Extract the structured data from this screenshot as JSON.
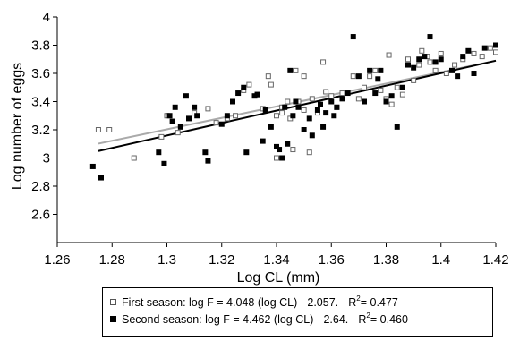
{
  "chart_data": {
    "type": "scatter",
    "xlabel": "Log CL (mm)",
    "ylabel": "Log number of eggs",
    "xlim": [
      1.26,
      1.42
    ],
    "ylim": [
      2.4,
      4.0
    ],
    "x_ticks": [
      "1.26",
      "1.28",
      "1.3",
      "1.32",
      "1.34",
      "1.36",
      "1.38",
      "1.4",
      "1.42"
    ],
    "y_ticks": [
      "2.6",
      "2.8",
      "3",
      "3.2",
      "3.4",
      "3.6",
      "3.8",
      "4"
    ],
    "x_tick_values": [
      1.26,
      1.28,
      1.3,
      1.32,
      1.34,
      1.36,
      1.38,
      1.4,
      1.42
    ],
    "y_tick_values": [
      2.6,
      2.8,
      3.0,
      3.2,
      3.4,
      3.6,
      3.8,
      4.0
    ],
    "grid": false,
    "legend_position": "bottom",
    "series": [
      {
        "name": "First season",
        "marker": "open-square",
        "color": "#666666",
        "points": [
          [
            1.275,
            3.2
          ],
          [
            1.279,
            3.2
          ],
          [
            1.288,
            3.0
          ],
          [
            1.298,
            3.15
          ],
          [
            1.3,
            3.3
          ],
          [
            1.304,
            3.18
          ],
          [
            1.31,
            3.32
          ],
          [
            1.315,
            3.35
          ],
          [
            1.318,
            3.25
          ],
          [
            1.322,
            3.28
          ],
          [
            1.325,
            3.3
          ],
          [
            1.328,
            3.48
          ],
          [
            1.33,
            3.52
          ],
          [
            1.333,
            3.45
          ],
          [
            1.335,
            3.35
          ],
          [
            1.337,
            3.58
          ],
          [
            1.338,
            3.52
          ],
          [
            1.34,
            3.3
          ],
          [
            1.34,
            3.0
          ],
          [
            1.342,
            3.36
          ],
          [
            1.342,
            3.32
          ],
          [
            1.344,
            3.4
          ],
          [
            1.345,
            3.28
          ],
          [
            1.346,
            3.06
          ],
          [
            1.347,
            3.62
          ],
          [
            1.348,
            3.4
          ],
          [
            1.35,
            3.58
          ],
          [
            1.35,
            3.34
          ],
          [
            1.352,
            3.04
          ],
          [
            1.353,
            3.42
          ],
          [
            1.355,
            3.32
          ],
          [
            1.357,
            3.68
          ],
          [
            1.358,
            3.47
          ],
          [
            1.36,
            3.44
          ],
          [
            1.362,
            3.36
          ],
          [
            1.364,
            3.46
          ],
          [
            1.368,
            3.58
          ],
          [
            1.37,
            3.42
          ],
          [
            1.372,
            3.5
          ],
          [
            1.374,
            3.58
          ],
          [
            1.376,
            3.62
          ],
          [
            1.378,
            3.48
          ],
          [
            1.38,
            3.42
          ],
          [
            1.381,
            3.73
          ],
          [
            1.382,
            3.38
          ],
          [
            1.384,
            3.5
          ],
          [
            1.386,
            3.45
          ],
          [
            1.388,
            3.7
          ],
          [
            1.39,
            3.55
          ],
          [
            1.392,
            3.66
          ],
          [
            1.393,
            3.76
          ],
          [
            1.395,
            3.72
          ],
          [
            1.396,
            3.68
          ],
          [
            1.398,
            3.62
          ],
          [
            1.4,
            3.74
          ],
          [
            1.402,
            3.6
          ],
          [
            1.405,
            3.66
          ],
          [
            1.408,
            3.7
          ],
          [
            1.412,
            3.74
          ],
          [
            1.415,
            3.72
          ],
          [
            1.418,
            3.78
          ],
          [
            1.42,
            3.75
          ]
        ]
      },
      {
        "name": "Second season",
        "marker": "filled-square",
        "color": "#000000",
        "points": [
          [
            1.273,
            2.94
          ],
          [
            1.276,
            2.86
          ],
          [
            1.297,
            3.04
          ],
          [
            1.299,
            2.96
          ],
          [
            1.301,
            3.3
          ],
          [
            1.302,
            3.26
          ],
          [
            1.303,
            3.36
          ],
          [
            1.305,
            3.22
          ],
          [
            1.307,
            3.44
          ],
          [
            1.308,
            3.28
          ],
          [
            1.31,
            3.36
          ],
          [
            1.311,
            3.3
          ],
          [
            1.314,
            3.04
          ],
          [
            1.315,
            2.98
          ],
          [
            1.32,
            3.24
          ],
          [
            1.322,
            3.3
          ],
          [
            1.324,
            3.4
          ],
          [
            1.326,
            3.46
          ],
          [
            1.328,
            3.5
          ],
          [
            1.329,
            3.04
          ],
          [
            1.332,
            3.44
          ],
          [
            1.333,
            3.45
          ],
          [
            1.335,
            3.12
          ],
          [
            1.336,
            3.34
          ],
          [
            1.338,
            3.22
          ],
          [
            1.34,
            3.08
          ],
          [
            1.341,
            3.06
          ],
          [
            1.342,
            3.0
          ],
          [
            1.343,
            3.36
          ],
          [
            1.344,
            3.1
          ],
          [
            1.345,
            3.62
          ],
          [
            1.346,
            3.3
          ],
          [
            1.347,
            3.4
          ],
          [
            1.348,
            3.36
          ],
          [
            1.35,
            3.2
          ],
          [
            1.352,
            3.28
          ],
          [
            1.353,
            3.16
          ],
          [
            1.355,
            3.34
          ],
          [
            1.356,
            3.38
          ],
          [
            1.357,
            3.22
          ],
          [
            1.358,
            3.32
          ],
          [
            1.36,
            3.4
          ],
          [
            1.361,
            3.3
          ],
          [
            1.362,
            3.36
          ],
          [
            1.364,
            3.42
          ],
          [
            1.366,
            3.46
          ],
          [
            1.368,
            3.86
          ],
          [
            1.37,
            3.58
          ],
          [
            1.372,
            3.4
          ],
          [
            1.374,
            3.62
          ],
          [
            1.376,
            3.46
          ],
          [
            1.377,
            3.56
          ],
          [
            1.378,
            3.62
          ],
          [
            1.38,
            3.4
          ],
          [
            1.382,
            3.44
          ],
          [
            1.384,
            3.22
          ],
          [
            1.386,
            3.5
          ],
          [
            1.388,
            3.66
          ],
          [
            1.39,
            3.64
          ],
          [
            1.392,
            3.7
          ],
          [
            1.394,
            3.72
          ],
          [
            1.396,
            3.86
          ],
          [
            1.398,
            3.68
          ],
          [
            1.4,
            3.7
          ],
          [
            1.404,
            3.62
          ],
          [
            1.406,
            3.58
          ],
          [
            1.408,
            3.72
          ],
          [
            1.41,
            3.76
          ],
          [
            1.412,
            3.6
          ],
          [
            1.416,
            3.78
          ],
          [
            1.42,
            3.8
          ]
        ]
      }
    ],
    "regression_lines": [
      {
        "series": "First season",
        "color": "#aaaaaa",
        "x": [
          1.275,
          1.42
        ],
        "y": [
          3.102,
          3.69
        ]
      },
      {
        "series": "Second season",
        "color": "#000000",
        "x": [
          1.275,
          1.42
        ],
        "y": [
          3.049,
          3.69
        ]
      }
    ]
  },
  "legend": {
    "first": {
      "label": "First season:  log F = 4.048 (log CL) - 2.057. - R",
      "sup": "2",
      "value": "= 0.477"
    },
    "second": {
      "label": "Second season: log F = 4.462 (log CL) - 2.64. - R",
      "sup": "2",
      "value": "= 0.460"
    }
  }
}
